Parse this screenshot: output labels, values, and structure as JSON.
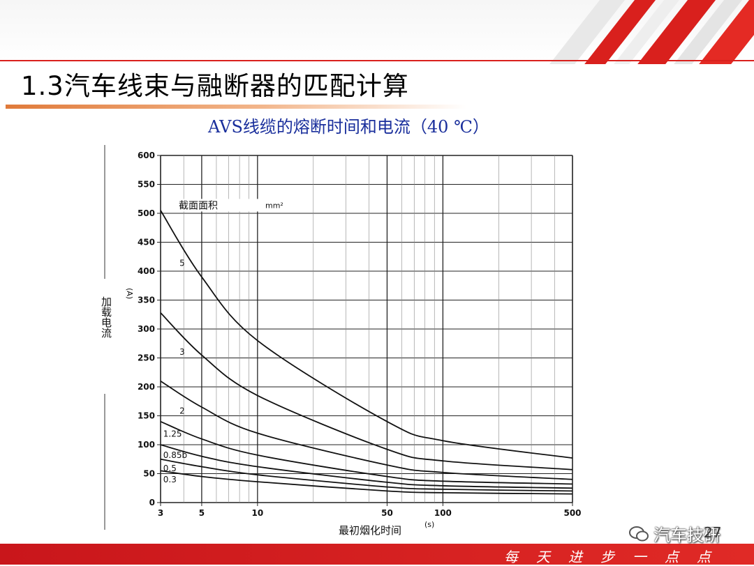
{
  "slide": {
    "title": "1.3汽车线束与融断器的匹配计算",
    "subtitle": "AVS线缆的熔断时间和电流（40 ℃）",
    "footer": "每天进步一点点",
    "watermark": "汽车技研",
    "page_number": "27",
    "colors": {
      "accent": "#d9201d",
      "subtitle": "#1a2f9c"
    }
  },
  "chart_data": {
    "type": "line",
    "xscale": "log",
    "xlim": [
      3,
      500
    ],
    "ylim": [
      0,
      600
    ],
    "x_ticks": [
      "3",
      "5",
      "10",
      "50",
      "100",
      "500"
    ],
    "y_ticks": [
      "0",
      "50",
      "100",
      "150",
      "200",
      "250",
      "300",
      "350",
      "400",
      "450",
      "500",
      "550",
      "600"
    ],
    "ylabel": "加载电流",
    "yunit": "(A)",
    "xlabel": "最初烟化时间",
    "xunit": "(s)",
    "legend_title": "截面面积",
    "legend_unit": "mm²",
    "grid": true,
    "series": [
      {
        "name": "5",
        "points": [
          [
            3,
            505
          ],
          [
            5,
            390
          ],
          [
            10,
            280
          ],
          [
            50,
            140
          ],
          [
            100,
            107
          ],
          [
            500,
            77
          ]
        ]
      },
      {
        "name": "3",
        "points": [
          [
            3,
            328
          ],
          [
            5,
            255
          ],
          [
            10,
            185
          ],
          [
            50,
            92
          ],
          [
            100,
            72
          ],
          [
            500,
            57
          ]
        ]
      },
      {
        "name": "2",
        "points": [
          [
            3,
            210
          ],
          [
            5,
            165
          ],
          [
            10,
            120
          ],
          [
            50,
            65
          ],
          [
            100,
            52
          ],
          [
            500,
            40
          ]
        ]
      },
      {
        "name": "1.25",
        "points": [
          [
            3,
            140
          ],
          [
            5,
            110
          ],
          [
            10,
            82
          ],
          [
            50,
            45
          ],
          [
            100,
            37
          ],
          [
            500,
            32
          ]
        ]
      },
      {
        "name": "0.85b",
        "points": [
          [
            3,
            100
          ],
          [
            5,
            80
          ],
          [
            10,
            62
          ],
          [
            50,
            35
          ],
          [
            100,
            29
          ],
          [
            500,
            25
          ]
        ]
      },
      {
        "name": "0.5",
        "points": [
          [
            3,
            75
          ],
          [
            5,
            62
          ],
          [
            10,
            48
          ],
          [
            50,
            27
          ],
          [
            100,
            23
          ],
          [
            500,
            20
          ]
        ]
      },
      {
        "name": "0.3",
        "points": [
          [
            3,
            55
          ],
          [
            5,
            45
          ],
          [
            10,
            36
          ],
          [
            50,
            20
          ],
          [
            100,
            17
          ],
          [
            500,
            15
          ]
        ]
      }
    ]
  }
}
